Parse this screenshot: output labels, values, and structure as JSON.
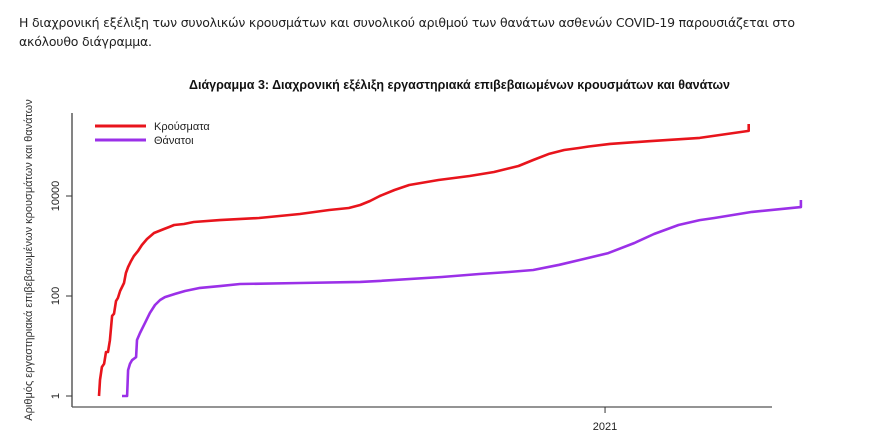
{
  "intro_text": "Η διαχρονική εξέλιξη των συνολικών κρουσμάτων και συνολικού αριθμού των θανάτων ασθενών COVID-19 παρουσιάζεται στο ακόλουθο διάγραμμα.",
  "chart_data": {
    "type": "line",
    "title": "Διάγραμμα 3: Διαχρονική εξέλιξη εργαστηριακά επιβεβαιωμένων κρουσμάτων και θανάτων",
    "xlabel": "",
    "ylabel": "Αριθμός εργαστηριακά επιβεβαιωμένων κρουσμάτων και θανάτων",
    "y_scale": "log10",
    "ylim": [
      0.8,
      600000
    ],
    "y_ticks": [
      {
        "value": 1,
        "label": "1"
      },
      {
        "value": 100,
        "label": "100"
      },
      {
        "value": 10000,
        "label": "10000"
      }
    ],
    "x_unit": "days since first case (approx.)",
    "xlim": [
      -16.5,
      412
    ],
    "x_ticks": [
      {
        "value": 310,
        "label": "2021"
      }
    ],
    "grid": false,
    "legend_position": "top-left",
    "series": [
      {
        "name": "Κρούσματα",
        "color": "#e8141c",
        "points": [
          [
            0,
            1
          ],
          [
            0.6,
            2.1
          ],
          [
            1.8,
            3.8
          ],
          [
            3.1,
            4.4
          ],
          [
            4.3,
            7.6
          ],
          [
            5.5,
            7.6
          ],
          [
            6.7,
            13
          ],
          [
            8,
            40
          ],
          [
            9.2,
            44
          ],
          [
            10.4,
            79
          ],
          [
            11.6,
            91
          ],
          [
            12.9,
            126
          ],
          [
            15.3,
            182
          ],
          [
            16.5,
            288
          ],
          [
            17.8,
            380
          ],
          [
            19.6,
            500
          ],
          [
            21.4,
            631
          ],
          [
            23.9,
            794
          ],
          [
            26.3,
            1047
          ],
          [
            29.4,
            1380
          ],
          [
            33.7,
            1820
          ],
          [
            39.8,
            2190
          ],
          [
            43,
            2400
          ],
          [
            46,
            2630
          ],
          [
            52,
            2750
          ],
          [
            58,
            3020
          ],
          [
            74,
            3300
          ],
          [
            98,
            3630
          ],
          [
            123,
            4370
          ],
          [
            141,
            5250
          ],
          [
            153,
            5750
          ],
          [
            160,
            6600
          ],
          [
            166,
            7940
          ],
          [
            172,
            10000
          ],
          [
            181,
            13200
          ],
          [
            190,
            16600
          ],
          [
            208,
            20900
          ],
          [
            227,
            25100
          ],
          [
            242,
            30200
          ],
          [
            257,
            39800
          ],
          [
            266,
            52500
          ],
          [
            276,
            70000
          ],
          [
            285,
            83000
          ],
          [
            294,
            91200
          ],
          [
            300,
            97700
          ],
          [
            313,
            110000
          ],
          [
            337,
            125000
          ],
          [
            368,
            145000
          ],
          [
            398,
            200000
          ],
          [
            396,
            220000
          ],
          [
            396.5,
            275000
          ]
        ]
      },
      {
        "name": "Θάνατοι",
        "color": "#9b30e8",
        "points": [
          [
            14.1,
            1
          ],
          [
            17.2,
            1
          ],
          [
            17.8,
            3.3
          ],
          [
            19,
            4.4
          ],
          [
            20.2,
            5.2
          ],
          [
            22.7,
            6.0
          ],
          [
            23.3,
            13.2
          ],
          [
            25.1,
            18.2
          ],
          [
            28.2,
            29
          ],
          [
            31.2,
            46
          ],
          [
            34.3,
            66
          ],
          [
            37.4,
            83
          ],
          [
            40.4,
            95
          ],
          [
            46.6,
            110
          ],
          [
            52.7,
            126
          ],
          [
            61.9,
            145
          ],
          [
            74.1,
            158
          ],
          [
            86.4,
            174
          ],
          [
            123,
            182
          ],
          [
            160,
            191
          ],
          [
            172,
            200
          ],
          [
            210,
            240
          ],
          [
            233,
            275
          ],
          [
            251,
            302
          ],
          [
            266,
            331
          ],
          [
            282,
            420
          ],
          [
            297,
            550
          ],
          [
            312,
            720
          ],
          [
            328,
            1150
          ],
          [
            340,
            1740
          ],
          [
            355,
            2630
          ],
          [
            368,
            3300
          ],
          [
            377,
            3630
          ],
          [
            400,
            4800
          ],
          [
            430,
            6000
          ],
          [
            396.5,
            8300
          ]
        ]
      }
    ]
  }
}
